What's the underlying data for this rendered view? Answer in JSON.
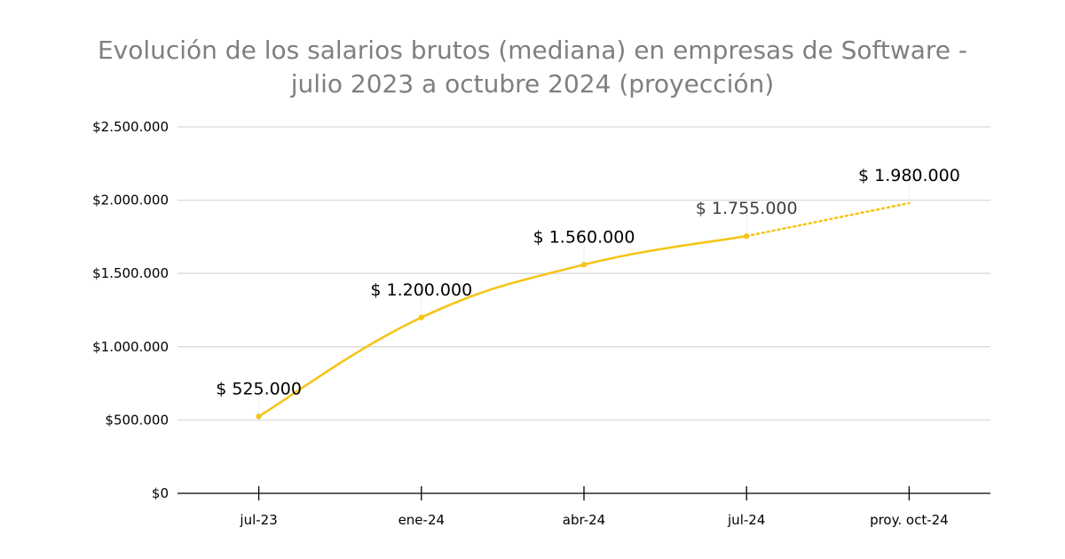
{
  "chart_data": {
    "type": "line",
    "title": "Evolución de los salarios brutos (mediana) en empresas de Software - julio 2023 a octubre 2024 (proyección)",
    "title_lines": [
      "Evolución de los salarios brutos (mediana) en empresas de Software -",
      "julio 2023 a octubre 2024 (proyección)"
    ],
    "xlabel": "",
    "ylabel": "",
    "categories": [
      "jul-23",
      "ene-24",
      "abr-24",
      "jul-24",
      "proy. oct-24"
    ],
    "values": [
      525000,
      1200000,
      1560000,
      1755000,
      1980000
    ],
    "data_labels": [
      "$ 525.000",
      "$ 1.200.000",
      "$ 1.560.000",
      "$ 1.755.000",
      "$ 1.980.000"
    ],
    "projected_from_index": 3,
    "ylim": [
      0,
      2500000
    ],
    "yticks": [
      0,
      500000,
      1000000,
      1500000,
      2000000,
      2500000
    ],
    "ytick_labels": [
      "$0",
      "$500.000",
      "$1.000.000",
      "$1.500.000",
      "$2.000.000",
      "$2.500.000"
    ],
    "grid": true,
    "legend": "none",
    "colors": {
      "line": "#f5c518",
      "grid": "#d9d9d9",
      "axis": "#000000",
      "title": "#7f7f7f"
    }
  }
}
